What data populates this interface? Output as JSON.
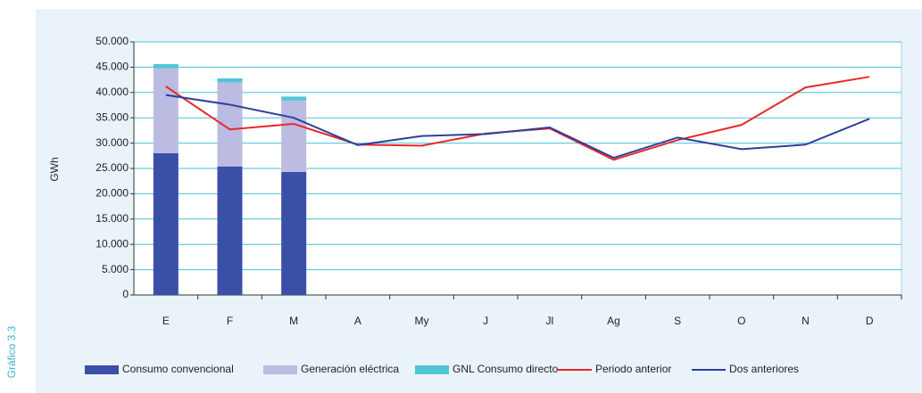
{
  "chart_data": {
    "type": "bar",
    "stacked": true,
    "figure_label": "Gráfico 3.3",
    "y_label": "GWh",
    "categories": [
      "E",
      "F",
      "M",
      "A",
      "My",
      "J",
      "Jl",
      "Ag",
      "S",
      "O",
      "N",
      "D"
    ],
    "series": [
      {
        "name": "Consumo convencional",
        "type": "bar",
        "color": "#3a4fa6",
        "values": [
          28000,
          25400,
          24300,
          null,
          null,
          null,
          null,
          null,
          null,
          null,
          null,
          null
        ]
      },
      {
        "name": "Generación eléctrica",
        "type": "bar",
        "color": "#bcbbe2",
        "values": [
          16800,
          16600,
          14100,
          null,
          null,
          null,
          null,
          null,
          null,
          null,
          null,
          null
        ]
      },
      {
        "name": "GNL Consumo directo",
        "type": "bar",
        "color": "#4fc6d6",
        "values": [
          800,
          800,
          800,
          null,
          null,
          null,
          null,
          null,
          null,
          null,
          null,
          null
        ]
      },
      {
        "name": "Periodo anterior",
        "type": "line",
        "color": "#e8282b",
        "values": [
          41200,
          32700,
          33800,
          29700,
          29500,
          31900,
          32900,
          26700,
          30600,
          33600,
          41000,
          43100
        ]
      },
      {
        "name": "Dos anteriores",
        "type": "line",
        "color": "#2e3f9a",
        "values": [
          39500,
          37600,
          35000,
          29600,
          31400,
          31800,
          33100,
          27100,
          31100,
          28800,
          29700,
          34800
        ]
      }
    ],
    "ylim": [
      0,
      50000
    ],
    "yticks": [
      0,
      {
        "value": 5000,
        "label": "5.000"
      },
      {
        "value": 10000,
        "label": "10.000"
      },
      {
        "value": 15000,
        "label": "15.000"
      },
      {
        "value": 20000,
        "label": "20.000"
      },
      {
        "value": 25000,
        "label": "25.000"
      },
      {
        "value": 30000,
        "label": "30.000"
      },
      {
        "value": 35000,
        "label": "35.000"
      },
      {
        "value": 40000,
        "label": "40.000"
      },
      {
        "value": 45000,
        "label": "45.000"
      },
      {
        "value": 50000,
        "label": "50.000"
      }
    ],
    "grid": true,
    "legend": "bottom"
  }
}
